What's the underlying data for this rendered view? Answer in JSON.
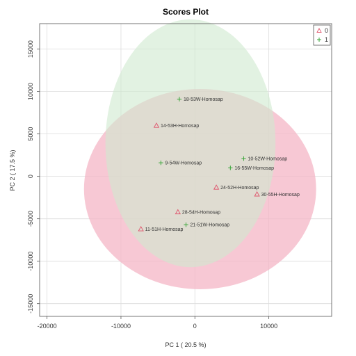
{
  "chart_data": {
    "type": "scatter",
    "title": "Scores Plot",
    "xlabel": "PC 1 ( 20.5 %)",
    "ylabel": "PC 2 ( 17.5 %)",
    "xlim": [
      -21000,
      18500
    ],
    "ylim": [
      -16500,
      18000
    ],
    "xticks": [
      -20000,
      -10000,
      0,
      10000
    ],
    "yticks": [
      -15000,
      -10000,
      -5000,
      0,
      5000,
      10000,
      15000
    ],
    "grid": true,
    "legend_position": "top-right",
    "series": [
      {
        "name": "0",
        "marker": "triangle",
        "color": "#df536b",
        "ellipse_color": "#f4b6c6",
        "ellipse": {
          "cx": 700,
          "cy": -1500,
          "rx": 15700,
          "ry": 11800
        },
        "points": [
          {
            "label": "14-53H-Homosap",
            "x": -5200,
            "y": 6000
          },
          {
            "label": "24-52H-Homosap",
            "x": 2900,
            "y": -1300
          },
          {
            "label": "30-55H-Homosap",
            "x": 8400,
            "y": -2100
          },
          {
            "label": "28-54H-Homosap",
            "x": -2300,
            "y": -4200
          },
          {
            "label": "11-51H-Homosap",
            "x": -7300,
            "y": -6200
          }
        ]
      },
      {
        "name": "1",
        "marker": "plus",
        "color": "#3aa63a",
        "ellipse_color": "#cfe9cf",
        "ellipse": {
          "cx": -600,
          "cy": 3900,
          "rx": 11500,
          "ry": 14600
        },
        "points": [
          {
            "label": "18-53W-Homosap",
            "x": -2100,
            "y": 9100
          },
          {
            "label": "9-54W-Homosap",
            "x": -4600,
            "y": 1600
          },
          {
            "label": "10-52W-Homosap",
            "x": 6600,
            "y": 2100
          },
          {
            "label": "16-55W-Homosap",
            "x": 4800,
            "y": 1000
          },
          {
            "label": "21-51W-Homosap",
            "x": -1200,
            "y": -5700
          }
        ]
      }
    ]
  }
}
